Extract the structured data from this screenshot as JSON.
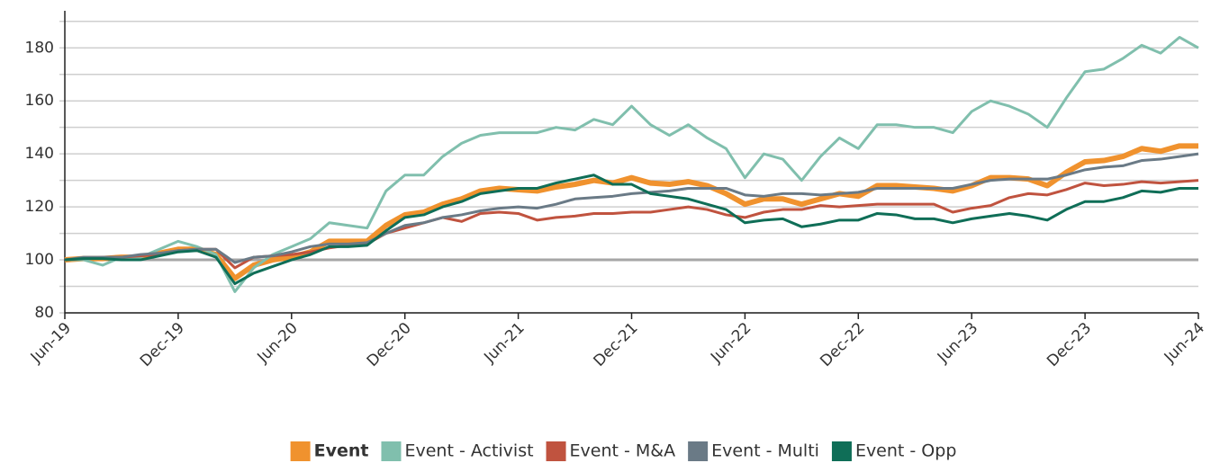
{
  "chart_data": {
    "type": "line",
    "categories": [
      "Jun-19",
      null,
      null,
      null,
      null,
      null,
      "Dec-19",
      null,
      null,
      null,
      null,
      null,
      "Jun-20",
      null,
      null,
      null,
      null,
      null,
      "Dec-20",
      null,
      null,
      null,
      null,
      null,
      "Jun-21",
      null,
      null,
      null,
      null,
      null,
      "Dec-21",
      null,
      null,
      null,
      null,
      null,
      "Jun-22",
      null,
      null,
      null,
      null,
      null,
      "Dec-22",
      null,
      null,
      null,
      null,
      null,
      "Jun-23",
      null,
      null,
      null,
      null,
      null,
      "Dec-23",
      null,
      null,
      null,
      null,
      null,
      "Jun-24"
    ],
    "ylim": [
      80,
      194
    ],
    "yticks": [
      80,
      100,
      120,
      140,
      160,
      180
    ],
    "minor_yticks": [
      90,
      110,
      130,
      150,
      170,
      190
    ],
    "reference_line": 100,
    "grid": true,
    "legend": "bottom",
    "series": [
      {
        "name": "Event",
        "color": "#f0922e",
        "width": 6,
        "bold": true,
        "values": [
          100,
          100.5,
          100.5,
          101,
          101,
          102.5,
          104,
          104,
          102,
          93,
          98,
          100,
          101,
          103,
          107,
          107,
          107,
          113,
          117,
          118,
          121,
          123,
          126,
          127,
          126.5,
          126,
          127.5,
          128.5,
          130,
          129,
          131,
          129,
          128.5,
          129.5,
          128,
          125,
          121,
          123,
          123,
          121,
          123,
          125,
          124,
          128,
          128,
          127.5,
          127,
          126,
          128,
          131,
          131,
          130.5,
          128,
          133,
          137,
          137.5,
          139,
          142,
          141,
          143,
          143
        ]
      },
      {
        "name": "Event - Activist",
        "color": "#80bfad",
        "width": 3,
        "values": [
          100,
          100,
          98,
          101,
          101,
          104,
          107,
          105,
          102,
          88,
          97,
          102,
          105,
          108,
          114,
          113,
          112,
          126,
          132,
          132,
          139,
          144,
          147,
          148,
          148,
          148,
          150,
          149,
          153,
          151,
          158,
          151,
          147,
          151,
          146,
          142,
          131,
          140,
          138,
          130,
          139,
          146,
          142,
          151,
          151,
          150,
          150,
          148,
          156,
          160,
          158,
          155,
          150,
          161,
          171,
          172,
          176,
          181,
          178,
          184,
          180
        ]
      },
      {
        "name": "Event - M&A",
        "color": "#c0533f",
        "width": 3,
        "values": [
          100,
          100.5,
          101,
          101,
          101.5,
          102,
          103.5,
          104,
          104,
          97,
          101,
          101.5,
          102,
          103,
          104.5,
          105.5,
          106,
          110,
          112,
          114,
          116,
          114.5,
          117.5,
          118,
          117.5,
          115,
          116,
          116.5,
          117.5,
          117.5,
          118,
          118,
          119,
          120,
          119,
          117,
          116,
          118,
          119,
          119,
          120.5,
          120,
          120.5,
          121,
          121,
          121,
          121,
          118,
          119.5,
          120.5,
          123.5,
          125,
          124.5,
          126.5,
          129,
          128,
          128.5,
          129.5,
          129,
          129.5,
          130
        ]
      },
      {
        "name": "Event - Multi",
        "color": "#6a7a86",
        "width": 3,
        "values": [
          100,
          101,
          101,
          101,
          102,
          102.5,
          103.5,
          104,
          104,
          99,
          101,
          101.5,
          103,
          105,
          106,
          106,
          106.5,
          110,
          113,
          114,
          116,
          117,
          118.5,
          119.5,
          120,
          119.5,
          121,
          123,
          123.5,
          124,
          125,
          125.5,
          126,
          127,
          127,
          127,
          124.5,
          124,
          125,
          125,
          124.5,
          125,
          125.5,
          127,
          127,
          127,
          127,
          127,
          128.5,
          130,
          130.5,
          130.5,
          130.5,
          132,
          134,
          135,
          135.5,
          137.5,
          138,
          139,
          140
        ]
      },
      {
        "name": "Event - Opp",
        "color": "#0f6e57",
        "width": 3,
        "values": [
          100,
          100.5,
          100.5,
          100,
          100,
          101.5,
          103,
          103.5,
          101,
          91,
          95,
          97.5,
          100,
          102,
          105,
          105,
          105.5,
          111,
          116,
          117,
          120,
          122,
          125,
          126,
          127,
          127,
          129,
          130.5,
          132,
          128.5,
          128.5,
          125,
          124,
          123,
          121,
          119,
          114,
          115,
          115.5,
          112.5,
          113.5,
          115,
          115,
          117.5,
          117,
          115.5,
          115.5,
          114,
          115.5,
          116.5,
          117.5,
          116.5,
          115,
          119,
          122,
          122,
          123.5,
          126,
          125.5,
          127,
          127
        ]
      }
    ]
  }
}
